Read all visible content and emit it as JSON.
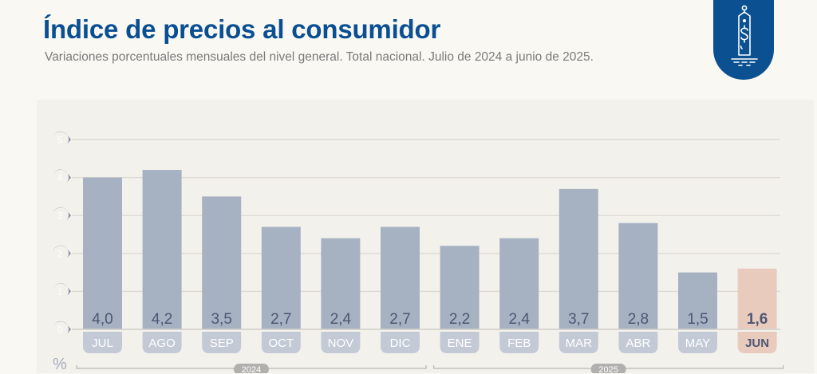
{
  "header": {
    "title": "Índice de precios al consumidor",
    "subtitle": "Variaciones porcentuales mensuales del nivel general. Total nacional. Julio de 2024 a junio de 2025.",
    "badge_icon": "price-tag-dollar-icon"
  },
  "colors": {
    "title": "#0a4f93",
    "badge": "#0b5191",
    "bar": "#a6b1c2",
    "bar_highlight": "#e8cbbd",
    "month_pill": "#c3cad6",
    "value_text": "#4d5673",
    "tick_marker": "#8a8fa6",
    "year_pill": "#b2b0ac"
  },
  "chart_data": {
    "type": "bar",
    "title": "Índice de precios al consumidor",
    "subtitle": "Variaciones porcentuales mensuales del nivel general. Total nacional. Julio de 2024 a junio de 2025.",
    "ylabel": "%",
    "xlabel": "",
    "ylim": [
      0,
      5
    ],
    "yticks": [
      "0",
      "1",
      "2",
      "3",
      "4",
      "5"
    ],
    "grid": true,
    "categories": [
      "JUL",
      "AGO",
      "SEP",
      "OCT",
      "NOV",
      "DIC",
      "ENE",
      "FEB",
      "MAR",
      "ABR",
      "MAY",
      "JUN"
    ],
    "values": [
      4.0,
      4.2,
      3.5,
      2.7,
      2.4,
      2.7,
      2.2,
      2.4,
      3.7,
      2.8,
      1.5,
      1.6
    ],
    "labels": [
      "4,0",
      "4,2",
      "3,5",
      "2,7",
      "2,4",
      "2,7",
      "2,2",
      "2,4",
      "3,7",
      "2,8",
      "1,5",
      "1,6"
    ],
    "highlight": "JUN",
    "year_groups": [
      {
        "label": "2024",
        "from": "JUL",
        "to": "DIC"
      },
      {
        "label": "2025",
        "from": "ENE",
        "to": "JUN"
      }
    ]
  }
}
